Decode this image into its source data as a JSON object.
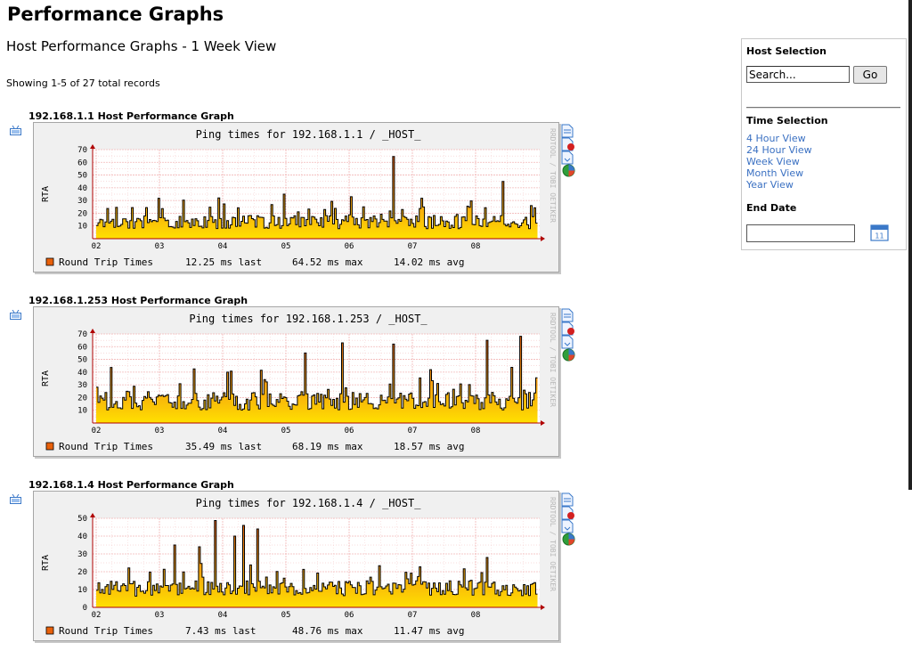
{
  "page": {
    "title": "Performance Graphs",
    "subtitle": "Host Performance Graphs - 1 Week View",
    "records_text": "Showing 1-5 of 27 total records"
  },
  "sidebar": {
    "host_selection_title": "Host Selection",
    "search_placeholder": "Search...",
    "go_label": "Go",
    "time_selection_title": "Time Selection",
    "time_links": [
      "4 Hour View",
      "24 Hour View",
      "Week View",
      "Month View",
      "Year View"
    ],
    "end_date_title": "End Date",
    "end_date_value": ""
  },
  "graph_common": {
    "ylabel": "RTA",
    "legend_label": "Round Trip Times",
    "x_ticks": [
      "02",
      "03",
      "04",
      "05",
      "06",
      "07",
      "08"
    ],
    "vendor_text": "RRDTOOL / TOBI OETIKER",
    "colors": {
      "fill_top": "#e8600a",
      "fill_mid": "#f5a010",
      "fill_bottom": "#ffe000",
      "line": "#000000",
      "grid": "#f2b8b8",
      "axis": "#b00000"
    }
  },
  "hosts": [
    {
      "heading": "192.168.1.1 Host Performance Graph",
      "graph_title": "Ping times for  192.168.1.1 / _HOST_",
      "last": "12.25 ms last",
      "max": "64.52 ms max",
      "avg": "14.02 ms avg",
      "chart_data": {
        "type": "area",
        "title": "Ping times for  192.168.1.1 / _HOST_",
        "ylabel": "RTA",
        "ylim": [
          0,
          70
        ],
        "y_ticks": [
          10,
          20,
          30,
          40,
          50,
          60,
          70
        ],
        "x_ticks": [
          "02",
          "03",
          "04",
          "05",
          "06",
          "07",
          "08"
        ],
        "series": [
          {
            "name": "Round Trip Times",
            "last": 12.25,
            "max": 64.52,
            "avg": 14.02
          }
        ],
        "spikes": [
          [
            4.68,
            64.52
          ],
          [
            6.43,
            45
          ],
          [
            2.97,
            35
          ],
          [
            4.03,
            33
          ]
        ]
      }
    },
    {
      "heading": "192.168.1.253 Host Performance Graph",
      "graph_title": "Ping times for  192.168.1.253 / _HOST_",
      "last": "35.49 ms last",
      "max": "68.19 ms max",
      "avg": "18.57 ms avg",
      "chart_data": {
        "type": "area",
        "title": "Ping times for  192.168.1.253 / _HOST_",
        "ylabel": "RTA",
        "ylim": [
          0,
          70
        ],
        "y_ticks": [
          10,
          20,
          30,
          40,
          50,
          60,
          70
        ],
        "x_ticks": [
          "02",
          "03",
          "04",
          "05",
          "06",
          "07",
          "08"
        ],
        "series": [
          {
            "name": "Round Trip Times",
            "last": 35.49,
            "max": 68.19,
            "avg": 18.57
          }
        ],
        "spikes": [
          [
            6.7,
            68.19
          ],
          [
            6.17,
            65
          ],
          [
            3.87,
            63
          ],
          [
            4.68,
            62
          ],
          [
            3.3,
            55
          ],
          [
            2.07,
            40
          ]
        ]
      }
    },
    {
      "heading": "192.168.1.4 Host Performance Graph",
      "graph_title": "Ping times for  192.168.1.4 / _HOST_",
      "last": "7.43 ms last",
      "max": "48.76 ms max",
      "avg": "11.47 ms avg",
      "chart_data": {
        "type": "area",
        "title": "Ping times for  192.168.1.4 / _HOST_",
        "ylabel": "RTA",
        "ylim": [
          0,
          50
        ],
        "y_ticks": [
          0,
          10,
          20,
          30,
          40,
          50
        ],
        "x_ticks": [
          "02",
          "03",
          "04",
          "05",
          "06",
          "07",
          "08"
        ],
        "series": [
          {
            "name": "Round Trip Times",
            "last": 7.43,
            "max": 48.76,
            "avg": 11.47
          }
        ],
        "spikes": [
          [
            1.86,
            48.76
          ],
          [
            2.33,
            46
          ],
          [
            2.55,
            44
          ],
          [
            2.17,
            40
          ],
          [
            1.24,
            35
          ],
          [
            1.61,
            34
          ],
          [
            6.16,
            28
          ]
        ]
      }
    }
  ]
}
